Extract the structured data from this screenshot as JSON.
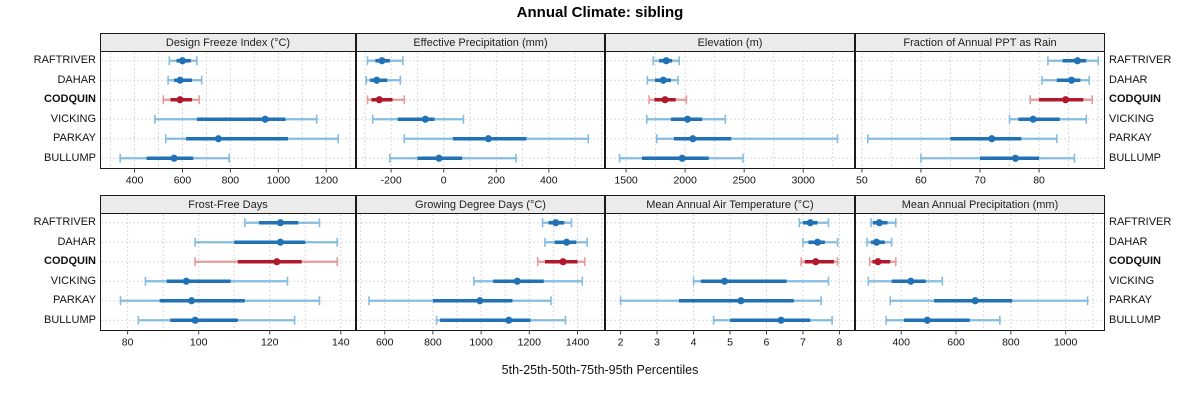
{
  "chart_data": {
    "type": "dotplot",
    "layout": "trellis 2 rows x 4 columns, shared category rows, percentile whiskers (5-25-50-75-95)",
    "title": "Annual Climate: sibling",
    "caption": "5th-25th-50th-75th-95th Percentiles",
    "categories": [
      "RAFTRIVER",
      "DAHAR",
      "CODQUIN",
      "VICKING",
      "PARKAY",
      "BULLUMP"
    ],
    "highlighted_category": "CODQUIN",
    "percentiles": [
      "5th",
      "25th",
      "50th",
      "75th",
      "95th"
    ],
    "colors": {
      "series_dark": "#2171b5",
      "series_light": "#85bcdf",
      "highlight_dark": "#b2182b",
      "highlight_light": "#e69c9c",
      "strip_bg": "#ebebeb",
      "panel_border": "#1a1a1a",
      "grid": "#cfcfcf",
      "tick_text": "#111111"
    },
    "panels": [
      {
        "title": "Design Freeze Index (°C)",
        "xlim": [
          260,
          1320
        ],
        "ticks": [
          400,
          600,
          800,
          1000,
          1200
        ],
        "grid_step": 100,
        "values": [
          [
            545,
            575,
            600,
            635,
            660
          ],
          [
            540,
            565,
            590,
            640,
            680
          ],
          [
            520,
            550,
            590,
            640,
            670
          ],
          [
            485,
            660,
            945,
            1030,
            1160
          ],
          [
            530,
            615,
            750,
            1040,
            1250
          ],
          [
            340,
            450,
            565,
            645,
            795
          ]
        ]
      },
      {
        "title": "Effective Precipitation (mm)",
        "xlim": [
          -330,
          610
        ],
        "ticks": [
          -200,
          0,
          200,
          400
        ],
        "grid_step": 100,
        "values": [
          [
            -290,
            -260,
            -235,
            -205,
            -155
          ],
          [
            -295,
            -280,
            -255,
            -215,
            -165
          ],
          [
            -290,
            -275,
            -245,
            -195,
            -150
          ],
          [
            -270,
            -175,
            -70,
            -35,
            75
          ],
          [
            -150,
            35,
            170,
            315,
            550
          ],
          [
            -205,
            -100,
            -18,
            70,
            275
          ]
        ]
      },
      {
        "title": "Elevation (m)",
        "xlim": [
          1330,
          3430
        ],
        "ticks": [
          1500,
          2000,
          2500,
          3000
        ],
        "grid_step": 250,
        "values": [
          [
            1730,
            1780,
            1840,
            1890,
            1950
          ],
          [
            1680,
            1745,
            1815,
            1880,
            1940
          ],
          [
            1695,
            1740,
            1830,
            1920,
            2010
          ],
          [
            1675,
            1880,
            2020,
            2145,
            2340
          ],
          [
            1760,
            1905,
            2065,
            2390,
            3290
          ],
          [
            1445,
            1635,
            1975,
            2200,
            2490
          ]
        ]
      },
      {
        "title": "Fraction of Annual PPT as Rain",
        "xlim": [
          49,
          91
        ],
        "ticks": [
          50,
          60,
          70,
          80
        ],
        "grid_step": 5,
        "values": [
          [
            81.5,
            84,
            86.5,
            88,
            90
          ],
          [
            80.5,
            83,
            85.5,
            87,
            88.5
          ],
          [
            78.5,
            80,
            84.5,
            87.5,
            89
          ],
          [
            75,
            76.5,
            79,
            83.5,
            88
          ],
          [
            51,
            65,
            72,
            77,
            83
          ],
          [
            60,
            70,
            76,
            80,
            86
          ]
        ]
      },
      {
        "title": "Frost-Free Days",
        "xlim": [
          72.5,
          144
        ],
        "ticks": [
          80,
          100,
          120,
          140
        ],
        "grid_step": 10,
        "values": [
          [
            113,
            117,
            123,
            128,
            134
          ],
          [
            99,
            110,
            123,
            130,
            139
          ],
          [
            99,
            111,
            122,
            129,
            139
          ],
          [
            85,
            91,
            96.5,
            109,
            125
          ],
          [
            78,
            89,
            98,
            113,
            134
          ],
          [
            83,
            92,
            99,
            111,
            127
          ]
        ]
      },
      {
        "title": "Growing Degree Days (°C)",
        "xlim": [
          485,
          1510
        ],
        "ticks": [
          600,
          800,
          1000,
          1200,
          1400
        ],
        "grid_step": 100,
        "values": [
          [
            1255,
            1280,
            1310,
            1345,
            1375
          ],
          [
            1265,
            1305,
            1355,
            1395,
            1440
          ],
          [
            1235,
            1265,
            1340,
            1400,
            1430
          ],
          [
            970,
            1050,
            1150,
            1260,
            1420
          ],
          [
            535,
            800,
            995,
            1130,
            1290
          ],
          [
            815,
            830,
            1115,
            1205,
            1350
          ]
        ]
      },
      {
        "title": "Mean Annual Air Temperature (°C)",
        "xlim": [
          1.6,
          8.4
        ],
        "ticks": [
          2,
          3,
          4,
          5,
          6,
          7,
          8
        ],
        "grid_step": 1,
        "values": [
          [
            6.9,
            7.0,
            7.2,
            7.4,
            7.7
          ],
          [
            7.0,
            7.15,
            7.4,
            7.6,
            7.95
          ],
          [
            6.95,
            7.05,
            7.35,
            7.85,
            7.95
          ],
          [
            4.0,
            4.2,
            4.85,
            6.55,
            7.7
          ],
          [
            2.0,
            3.6,
            5.3,
            6.75,
            7.5
          ],
          [
            4.55,
            5.0,
            6.4,
            7.2,
            7.8
          ]
        ]
      },
      {
        "title": "Mean Annual Precipitation (mm)",
        "xlim": [
          235,
          1140
        ],
        "ticks": [
          400,
          600,
          800,
          1000
        ],
        "grid_step": 100,
        "values": [
          [
            290,
            297,
            320,
            350,
            380
          ],
          [
            275,
            290,
            310,
            340,
            365
          ],
          [
            285,
            295,
            315,
            360,
            380
          ],
          [
            280,
            365,
            435,
            490,
            550
          ],
          [
            360,
            520,
            670,
            805,
            1080
          ],
          [
            345,
            410,
            495,
            650,
            760
          ]
        ]
      }
    ]
  }
}
